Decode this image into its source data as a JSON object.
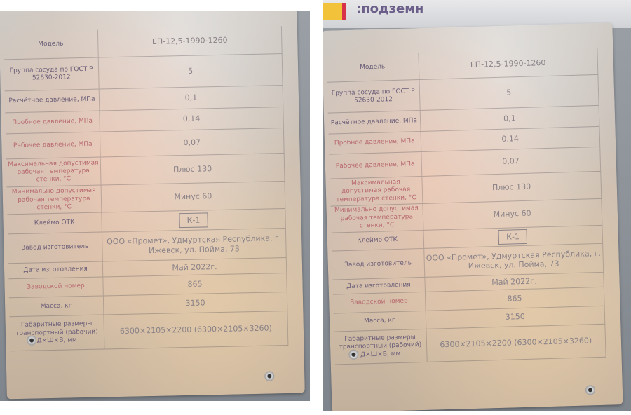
{
  "sign_text": ":подземн",
  "plate": {
    "rows": [
      {
        "label": "Модель",
        "value": "ЕП-12,5-1990-1260"
      },
      {
        "label": "Группа сосуда по ГОСТ Р 52630-2012",
        "value": "5"
      },
      {
        "label": "Расчётное давление, МПа",
        "value": "0,1"
      },
      {
        "label": "Пробное давление, МПа",
        "value": "0,14"
      },
      {
        "label": "Рабочее давление, МПа",
        "value": "0,07"
      },
      {
        "label": "Максимальная допустимая рабочая температура стенки, °С",
        "value": "Плюс 130"
      },
      {
        "label": "Минимально допустимая рабочая температура стенки, °С",
        "value": "Минус 60"
      },
      {
        "label": "Клеймо ОТК",
        "value": "К-1"
      },
      {
        "label": "Завод изготовитель",
        "value": "ООО «Промет», Удмуртская Республика, г. Ижевск, ул. Пойма, 73"
      },
      {
        "label": "Дата изготовления",
        "value": "Май 2022г."
      },
      {
        "label": "Заводской номер",
        "value": "865"
      },
      {
        "label": "Масса, кг",
        "value": "3150"
      },
      {
        "label": "Габаритные размеры транспортный (рабочий) Д×Ш×В, мм",
        "value": "6300×2105×2200 (6300×2105×3260)"
      }
    ]
  },
  "colors": {
    "label_text": "#6b5e78",
    "label_text_red": "#b86a70",
    "plate": "#c9bdb3",
    "background": "#8b9097"
  }
}
